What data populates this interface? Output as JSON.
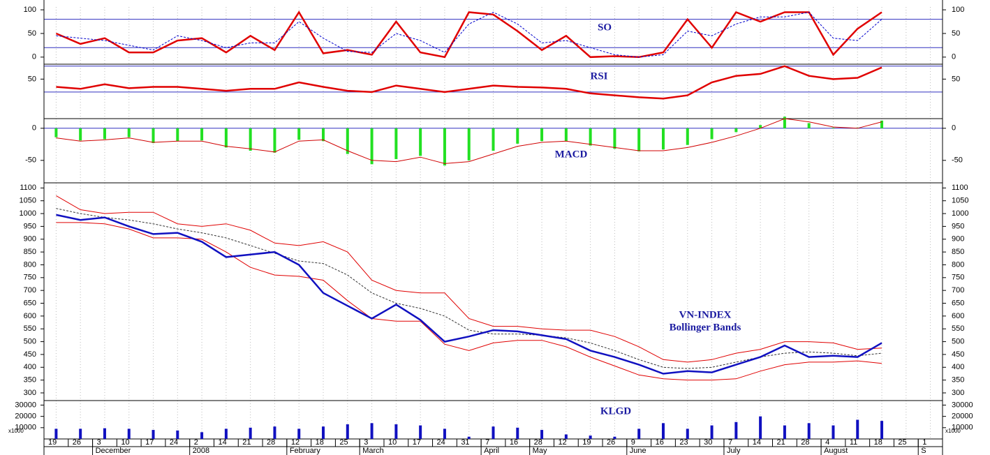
{
  "chart_data": [
    {
      "type": "line",
      "title": "SO",
      "ylim": [
        -15,
        106
      ],
      "yticks": [
        0,
        50,
        100
      ],
      "levels": [
        80,
        20
      ],
      "series": [
        {
          "color": "#e00000",
          "values": [
            50,
            28,
            40,
            10,
            10,
            35,
            40,
            10,
            45,
            15,
            95,
            8,
            15,
            5,
            75,
            10,
            0,
            95,
            90,
            55,
            15,
            45,
            0,
            2,
            0,
            10,
            80,
            20,
            95,
            75,
            95,
            95,
            5,
            60,
            95,
            null,
            null
          ]
        },
        {
          "color": "#0000cc",
          "dash": true,
          "values": [
            45,
            40,
            35,
            25,
            15,
            45,
            35,
            20,
            30,
            30,
            75,
            40,
            12,
            10,
            50,
            35,
            10,
            70,
            95,
            70,
            30,
            35,
            20,
            5,
            0,
            5,
            55,
            45,
            70,
            85,
            85,
            95,
            40,
            35,
            80,
            null,
            null
          ]
        }
      ]
    },
    {
      "type": "line",
      "title": "RSI",
      "ylim": [
        -11,
        73
      ],
      "yticks": [
        50
      ],
      "levels": [
        70,
        30
      ],
      "series": [
        {
          "color": "#e00000",
          "values": [
            38,
            35,
            42,
            36,
            38,
            38,
            35,
            32,
            35,
            35,
            45,
            38,
            32,
            30,
            40,
            35,
            30,
            35,
            40,
            38,
            37,
            35,
            28,
            25,
            22,
            20,
            25,
            45,
            55,
            58,
            70,
            55,
            50,
            52,
            68,
            null,
            null
          ]
        }
      ]
    },
    {
      "type": "bar",
      "title": "MACD",
      "ylim": [
        -85,
        15
      ],
      "yticks": [
        0,
        -50
      ],
      "levels": [
        0
      ],
      "series": [
        {
          "type": "bar",
          "color": "#22e022",
          "values": [
            -14,
            -19,
            -17,
            -14,
            -23,
            -20,
            -19,
            -30,
            -35,
            -38,
            -18,
            -20,
            -40,
            -56,
            -48,
            -43,
            -58,
            -50,
            -35,
            -24,
            -20,
            -20,
            -27,
            -32,
            -36,
            -33,
            -26,
            -17,
            -6,
            5,
            18,
            8,
            1,
            1,
            12,
            null,
            null
          ]
        },
        {
          "type": "line",
          "color": "#d00000",
          "values": [
            -15,
            -20,
            -18,
            -15,
            -22,
            -20,
            -20,
            -28,
            -32,
            -37,
            -20,
            -18,
            -35,
            -50,
            -52,
            -45,
            -55,
            -52,
            -40,
            -28,
            -22,
            -20,
            -25,
            -30,
            -35,
            -35,
            -30,
            -22,
            -12,
            0,
            15,
            10,
            2,
            0,
            10,
            null,
            null
          ]
        }
      ]
    },
    {
      "type": "line",
      "title": "VN-INDEX",
      "subtitle": "Bollinger Bands",
      "ylim": [
        270,
        1120
      ],
      "yticks": [
        300,
        350,
        400,
        450,
        500,
        550,
        600,
        650,
        700,
        750,
        800,
        850,
        900,
        950,
        1000,
        1050,
        1100
      ],
      "series": [
        {
          "color": "#e00000",
          "values": [
            1070,
            1015,
            1000,
            1005,
            1005,
            960,
            950,
            960,
            935,
            885,
            875,
            890,
            850,
            740,
            700,
            690,
            690,
            590,
            560,
            560,
            550,
            545,
            545,
            520,
            480,
            430,
            420,
            430,
            455,
            470,
            500,
            500,
            495,
            470,
            475,
            null,
            null
          ]
        },
        {
          "color": "#333333",
          "dash": true,
          "values": [
            1020,
            1000,
            985,
            975,
            960,
            940,
            925,
            905,
            875,
            845,
            815,
            805,
            760,
            690,
            650,
            630,
            600,
            545,
            530,
            530,
            525,
            515,
            495,
            465,
            430,
            400,
            395,
            400,
            420,
            440,
            455,
            460,
            455,
            445,
            455,
            null,
            null
          ]
        },
        {
          "color": "#e00000",
          "values": [
            965,
            965,
            960,
            940,
            905,
            905,
            900,
            850,
            790,
            760,
            755,
            740,
            660,
            590,
            580,
            580,
            490,
            465,
            495,
            505,
            505,
            480,
            440,
            405,
            370,
            355,
            350,
            350,
            355,
            385,
            410,
            420,
            420,
            425,
            415,
            null,
            null
          ]
        },
        {
          "color": "#1010c0",
          "width": 2.5,
          "values": [
            995,
            975,
            985,
            950,
            920,
            925,
            890,
            830,
            840,
            850,
            800,
            690,
            640,
            590,
            645,
            585,
            500,
            520,
            545,
            540,
            525,
            510,
            465,
            440,
            410,
            375,
            385,
            380,
            410,
            440,
            485,
            440,
            445,
            440,
            495,
            null,
            null
          ]
        }
      ]
    },
    {
      "type": "bar",
      "title": "KLGD",
      "unit": "x1000",
      "ylim": [
        0,
        34000
      ],
      "yticks": [
        30000,
        20000,
        10000
      ],
      "categories": [
        "19",
        "26",
        "3",
        "10",
        "17",
        "24",
        "2",
        "14",
        "21",
        "28",
        "12",
        "18",
        "25",
        "3",
        "10",
        "17",
        "24",
        "31",
        "7",
        "16",
        "28",
        "12",
        "19",
        "26",
        "9",
        "16",
        "23",
        "30",
        "7",
        "14",
        "21",
        "28",
        "4",
        "11",
        "18",
        "25",
        "1"
      ],
      "months": [
        null,
        null,
        "December",
        null,
        null,
        null,
        "2008",
        null,
        null,
        null,
        "February",
        null,
        null,
        "March",
        null,
        null,
        null,
        null,
        "April",
        null,
        "May",
        null,
        null,
        null,
        "June",
        null,
        null,
        null,
        "July",
        null,
        null,
        null,
        "August",
        null,
        null,
        null,
        "S"
      ],
      "series": [
        {
          "color": "#1010c0",
          "values": [
            9000,
            9000,
            9500,
            9000,
            8000,
            7500,
            6000,
            9000,
            10000,
            11000,
            9000,
            11000,
            13000,
            14000,
            13000,
            12000,
            9000,
            2000,
            11000,
            10000,
            8000,
            4000,
            3000,
            2000,
            9000,
            14000,
            9000,
            12000,
            15000,
            20000,
            12000,
            14000,
            12000,
            17000,
            16000,
            null,
            null
          ]
        }
      ]
    }
  ]
}
